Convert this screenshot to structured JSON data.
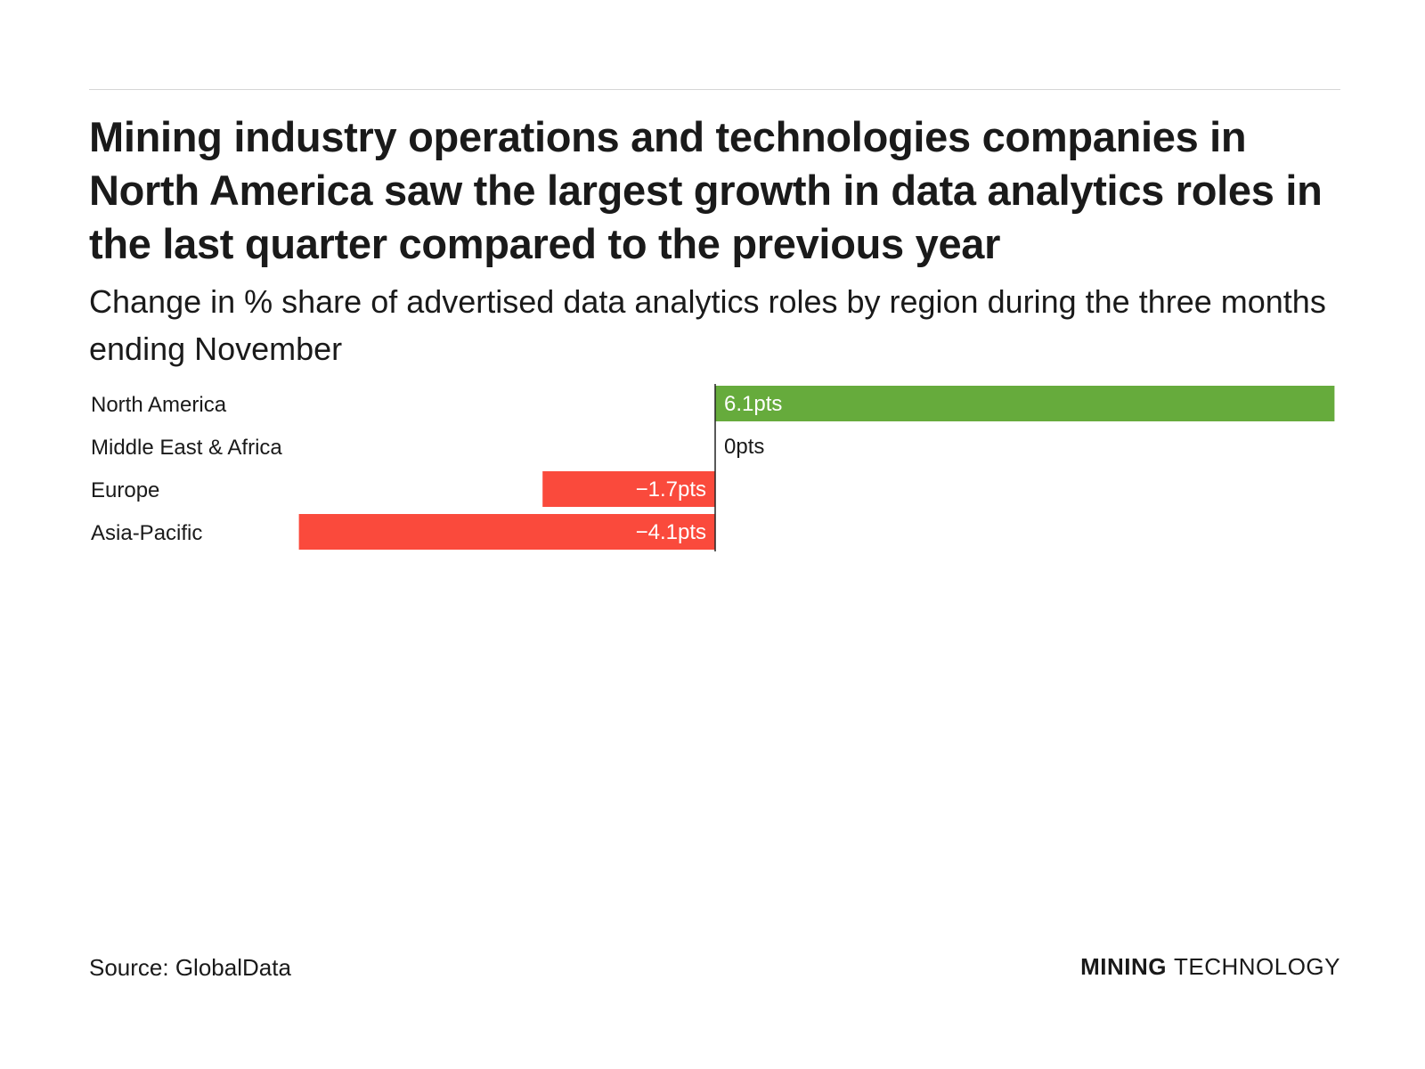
{
  "header": {
    "title": "Mining industry operations and technologies companies in North America saw the largest growth in data analytics roles in the last quarter compared to the previous year",
    "subtitle": "Change in % share of advertised data analytics roles by region during the three months ending November"
  },
  "chart_data": {
    "type": "bar",
    "orientation": "horizontal",
    "title": "Mining industry operations and technologies companies in North America saw the largest growth in data analytics roles in the last quarter compared to the previous year",
    "subtitle": "Change in % share of advertised data analytics roles by region during the three months ending November",
    "categories": [
      "North America",
      "Middle East & Africa",
      "Europe",
      "Asia-Pacific"
    ],
    "values": [
      6.1,
      0,
      -1.7,
      -4.1
    ],
    "labels": [
      "6.1pts",
      "0pts",
      "−1.7pts",
      "−4.1pts"
    ],
    "unit": "pts",
    "xlim": [
      -4.1,
      6.1
    ],
    "grid": false,
    "legend": "none",
    "colors": {
      "positive": "#66ab3c",
      "negative": "#fa4a3c",
      "baseline": "#222222"
    }
  },
  "footer": {
    "source": "Source: GlobalData",
    "brand_bold": "MINING",
    "brand_light": "TECHNOLOGY"
  }
}
